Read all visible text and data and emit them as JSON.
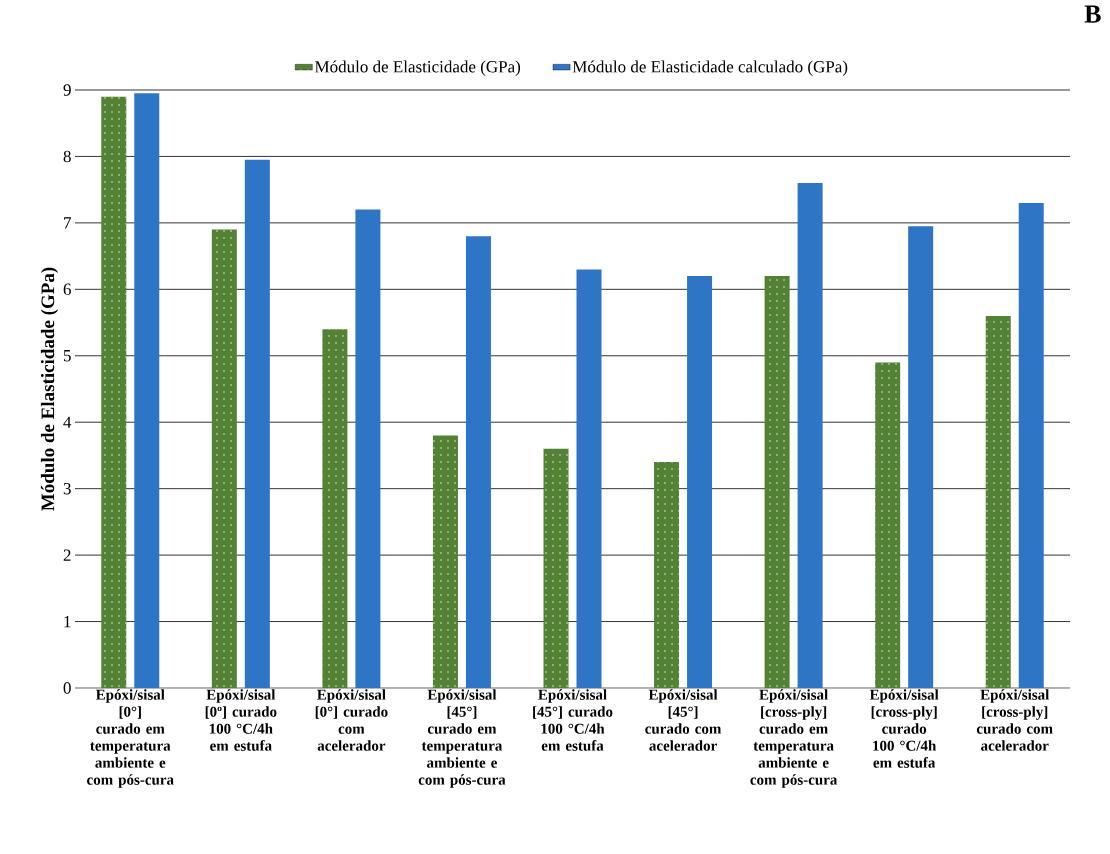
{
  "chart_data": {
    "type": "bar",
    "ylabel": "Módulo de Elasticidade (GPa)",
    "annotations": [
      "B"
    ],
    "categories": [
      "Epóxi/sisal [0°] curado em temperatura ambiente e com pós-cura",
      "Epóxi/sisal [0º] curado 100 °C/4h em estufa",
      "Epóxi/sisal [0°] curado com acelerador",
      "Epóxi/sisal [45°] curado em temperatura ambiente e com pós-cura",
      "Epóxi/sisal [45°] curado 100 °C/4h em estufa",
      "Epóxi/sisal [45°] curado com acelerador",
      "Epóxi/sisal [cross-ply] curado em temperatura ambiente e com pós-cura",
      "Epóxi/sisal [cross-ply] curado 100 °C/4h em estufa",
      "Epóxi/sisal [cross-ply] curado com acelerador"
    ],
    "series": [
      {
        "name": "Módulo de Elasticidade (GPa)",
        "color": "#548235",
        "values": [
          8.9,
          6.9,
          5.4,
          3.8,
          3.6,
          3.4,
          6.2,
          4.9,
          5.6
        ]
      },
      {
        "name": "Módulo de Elasticidade calculado (GPa)",
        "color": "#2e75c6",
        "values": [
          8.95,
          7.95,
          7.2,
          6.8,
          6.3,
          6.2,
          7.6,
          6.95,
          7.3
        ]
      }
    ],
    "ylim": [
      0,
      9
    ],
    "yticks": [
      0,
      1,
      2,
      3,
      4,
      5,
      6,
      7,
      8,
      9
    ],
    "grid": "y",
    "legend": "top"
  }
}
